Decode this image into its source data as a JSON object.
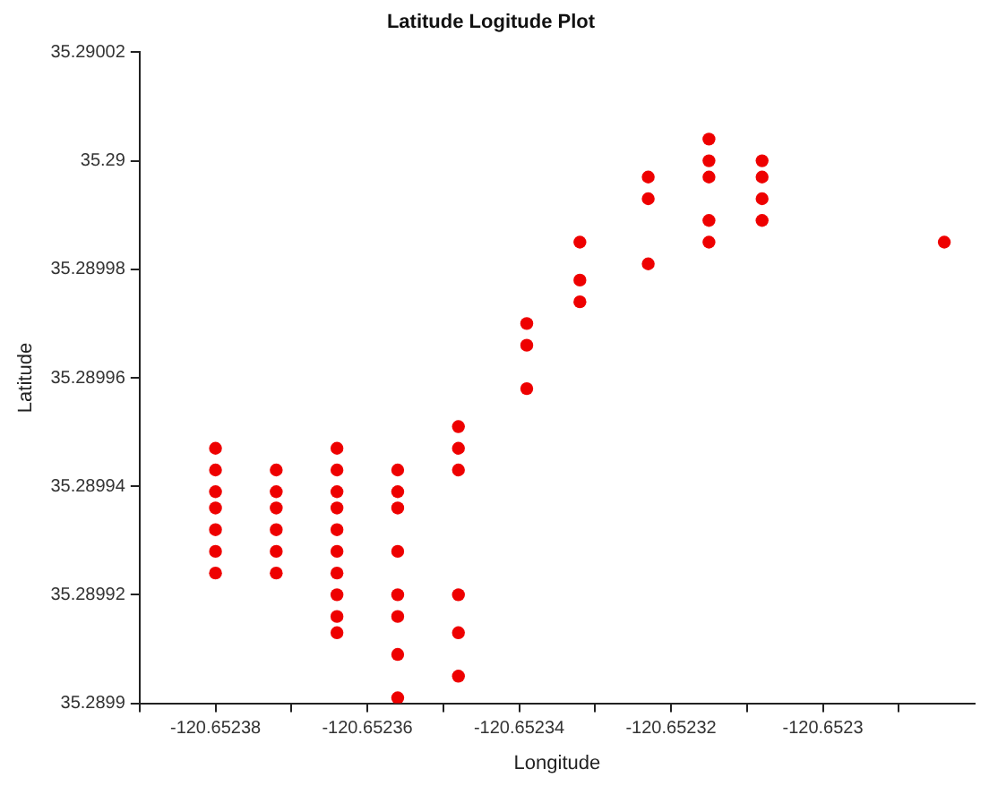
{
  "chart_data": {
    "type": "scatter",
    "title": "Latitude Logitude Plot",
    "xlabel": "Longitude",
    "ylabel": "Latitude",
    "x": [
      -120.65238,
      -120.65238,
      -120.65238,
      -120.65238,
      -120.65238,
      -120.65238,
      -120.65238,
      -120.652372,
      -120.652372,
      -120.652372,
      -120.652372,
      -120.652372,
      -120.652372,
      -120.652364,
      -120.652364,
      -120.652364,
      -120.652364,
      -120.652364,
      -120.652364,
      -120.652364,
      -120.652364,
      -120.652364,
      -120.652364,
      -120.652356,
      -120.652356,
      -120.652356,
      -120.652356,
      -120.652356,
      -120.652356,
      -120.652356,
      -120.652356,
      -120.652348,
      -120.652348,
      -120.652348,
      -120.652348,
      -120.652348,
      -120.652348,
      -120.652339,
      -120.652339,
      -120.652339,
      -120.652332,
      -120.652332,
      -120.652332,
      -120.652323,
      -120.652323,
      -120.652323,
      -120.652315,
      -120.652315,
      -120.652315,
      -120.652315,
      -120.652315,
      -120.652308,
      -120.652308,
      -120.652308,
      -120.652308,
      -120.652284
    ],
    "series": [
      {
        "color": "#ee0000",
        "values": [
          35.289947,
          35.289943,
          35.289939,
          35.289936,
          35.289932,
          35.289928,
          35.289924,
          35.289943,
          35.289939,
          35.289936,
          35.289932,
          35.289928,
          35.289924,
          35.289947,
          35.289943,
          35.289939,
          35.289936,
          35.289932,
          35.289928,
          35.289924,
          35.28992,
          35.289916,
          35.289913,
          35.289943,
          35.289939,
          35.289936,
          35.289928,
          35.28992,
          35.289916,
          35.289909,
          35.289901,
          35.289951,
          35.289947,
          35.289943,
          35.28992,
          35.289913,
          35.289905,
          35.28997,
          35.289966,
          35.289958,
          35.289985,
          35.289978,
          35.289974,
          35.289997,
          35.289993,
          35.289981,
          35.290004,
          35.29,
          35.289997,
          35.289989,
          35.289985,
          35.29,
          35.289997,
          35.289993,
          35.289989,
          35.289985
        ]
      }
    ],
    "xlim": [
      -120.65239,
      -120.65228
    ],
    "xticks": [
      {
        "value": -120.65239,
        "label": null
      },
      -120.65238,
      {
        "value": -120.65237,
        "label": null
      },
      -120.65236,
      {
        "value": -120.65235,
        "label": null
      },
      -120.65234,
      {
        "value": -120.65233,
        "label": null
      },
      -120.65232,
      {
        "value": -120.65231,
        "label": null
      },
      -120.6523,
      {
        "value": -120.65229,
        "label": null
      }
    ],
    "ylim": [
      35.2899,
      35.29002
    ],
    "yticks": [
      35.2899,
      35.28992,
      35.28994,
      35.28996,
      35.28998,
      35.29,
      35.29002
    ],
    "marker": "circle",
    "grid": false,
    "legend": false
  }
}
